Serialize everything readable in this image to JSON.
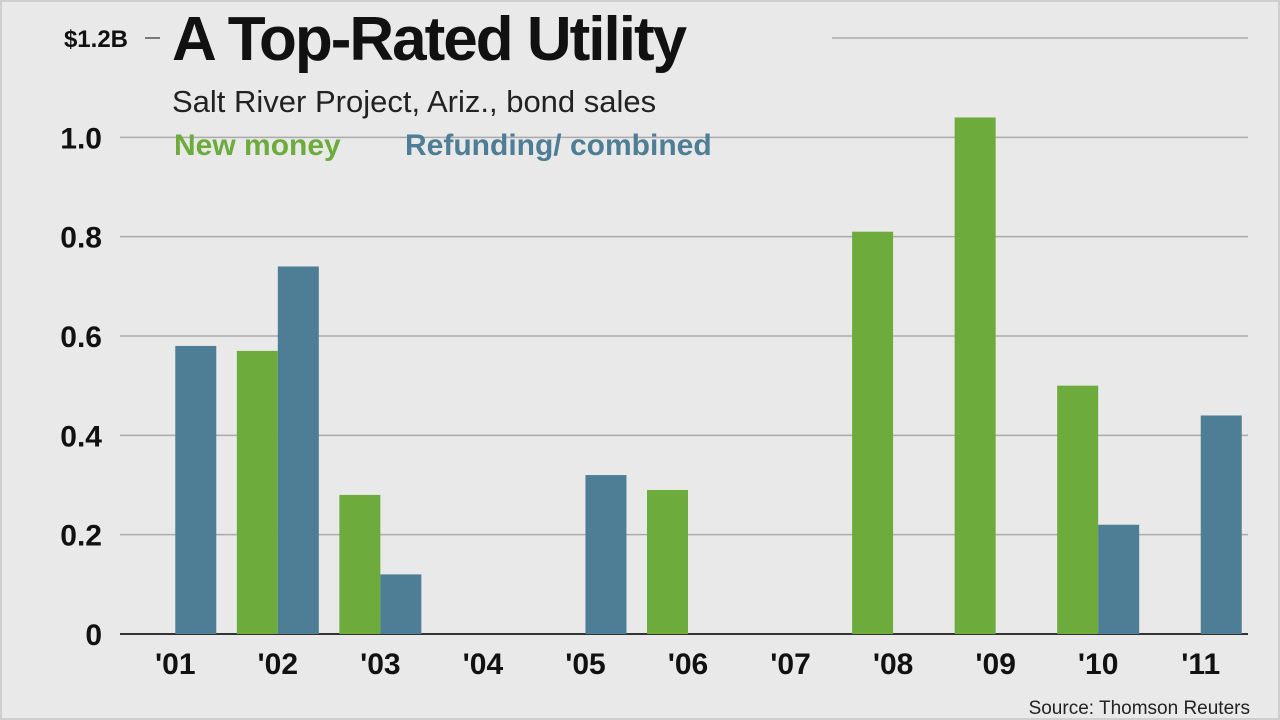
{
  "chart_data": {
    "type": "bar",
    "title": "A Top-Rated Utility",
    "subtitle": "Salt River Project, Ariz., bond sales",
    "source": "Source: Thomson Reuters",
    "ylabel": "",
    "xlabel": "",
    "ylim": [
      0,
      1.2
    ],
    "y_ticks": [
      {
        "value": 0,
        "label": "0"
      },
      {
        "value": 0.2,
        "label": "0.2"
      },
      {
        "value": 0.4,
        "label": "0.4"
      },
      {
        "value": 0.6,
        "label": "0.6"
      },
      {
        "value": 0.8,
        "label": "0.8"
      },
      {
        "value": 1.0,
        "label": "1.0"
      },
      {
        "value": 1.2,
        "label": "$1.2B"
      }
    ],
    "categories": [
      "'01",
      "'02",
      "'03",
      "'04",
      "'05",
      "'06",
      "'07",
      "'08",
      "'09",
      "'10",
      "'11"
    ],
    "series": [
      {
        "name": "New money",
        "color": "#6cab3c",
        "values": [
          0,
          0.57,
          0.28,
          0,
          0,
          0.29,
          0,
          0.81,
          1.04,
          0.5,
          0
        ]
      },
      {
        "name": "Refunding/ combined",
        "color": "#4d7e95",
        "values": [
          0.58,
          0.74,
          0.12,
          0,
          0.32,
          0,
          0,
          0,
          0,
          0.22,
          0.44
        ]
      }
    ]
  }
}
